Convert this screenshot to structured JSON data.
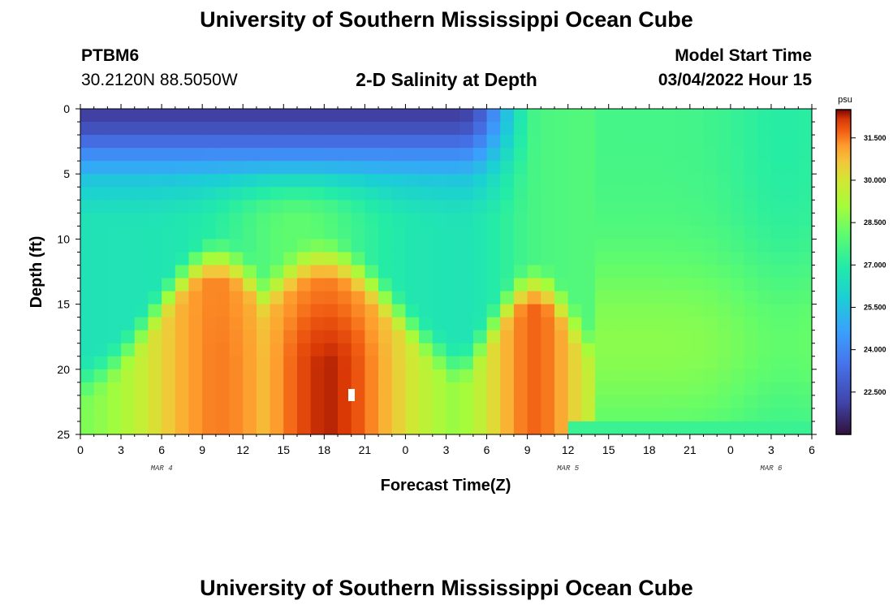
{
  "header": {
    "title": "University of Southern Mississippi Ocean Cube",
    "footer_title": "University of Southern Mississippi Ocean Cube",
    "station": "PTBM6",
    "coordinates": "30.2120N  88.5050W",
    "model_start_label": "Model Start Time",
    "model_start_time": "03/04/2022 Hour 15"
  },
  "chart_data": {
    "type": "heatmap",
    "title": "2-D Salinity at Depth",
    "xlabel": "Forecast Time(Z)",
    "ylabel": "Depth (ft)",
    "x_tick_labels": [
      "0",
      "3",
      "6",
      "9",
      "12",
      "15",
      "18",
      "21",
      "0",
      "3",
      "6",
      "9",
      "12",
      "15",
      "18",
      "21",
      "0",
      "3",
      "6"
    ],
    "date_labels": [
      {
        "label": "MAR 4",
        "tick_index": 2
      },
      {
        "label": "MAR 5",
        "tick_index": 12
      },
      {
        "label": "MAR 6",
        "tick_index": 17
      }
    ],
    "y_ticks": [
      0,
      5,
      10,
      15,
      20,
      25
    ],
    "ylim": [
      0,
      25
    ],
    "colorbar": {
      "unit": "psu",
      "tick_labels": [
        "31.500",
        "30.000",
        "28.500",
        "27.000",
        "25.500",
        "24.000",
        "22.500"
      ],
      "range": [
        21.0,
        32.5
      ]
    }
  }
}
